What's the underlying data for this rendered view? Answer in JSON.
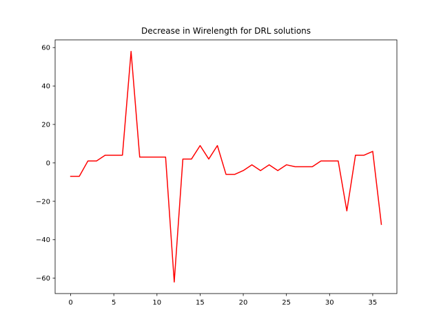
{
  "chart_data": {
    "type": "line",
    "title": "Decrease in Wirelength for DRL solutions",
    "xlabel": "",
    "ylabel": "",
    "xlim": [
      -1.8,
      37.8
    ],
    "ylim": [
      -68,
      64
    ],
    "x_ticks": [
      0,
      5,
      10,
      15,
      20,
      25,
      30,
      35
    ],
    "y_ticks": [
      -60,
      -40,
      -20,
      0,
      20,
      40,
      60
    ],
    "grid": false,
    "legend": "none",
    "line_color": "#ff0000",
    "series": [
      {
        "x": [
          0,
          1,
          2,
          3,
          4,
          5,
          6,
          7,
          8,
          9,
          10,
          11,
          12,
          13,
          14,
          15,
          16,
          17,
          18,
          19,
          20,
          21,
          22,
          23,
          24,
          25,
          26,
          27,
          28,
          29,
          30,
          31,
          32,
          33,
          34,
          35,
          36
        ],
        "values": [
          -7,
          -7,
          1,
          1,
          4,
          4,
          4,
          58,
          3,
          3,
          3,
          3,
          -62,
          2,
          2,
          9,
          2,
          9,
          -6,
          -6,
          -4,
          -1,
          -4,
          -1,
          -4,
          -1,
          -2,
          -2,
          -2,
          1,
          1,
          1,
          -25,
          4,
          4,
          6,
          -32
        ]
      }
    ]
  }
}
